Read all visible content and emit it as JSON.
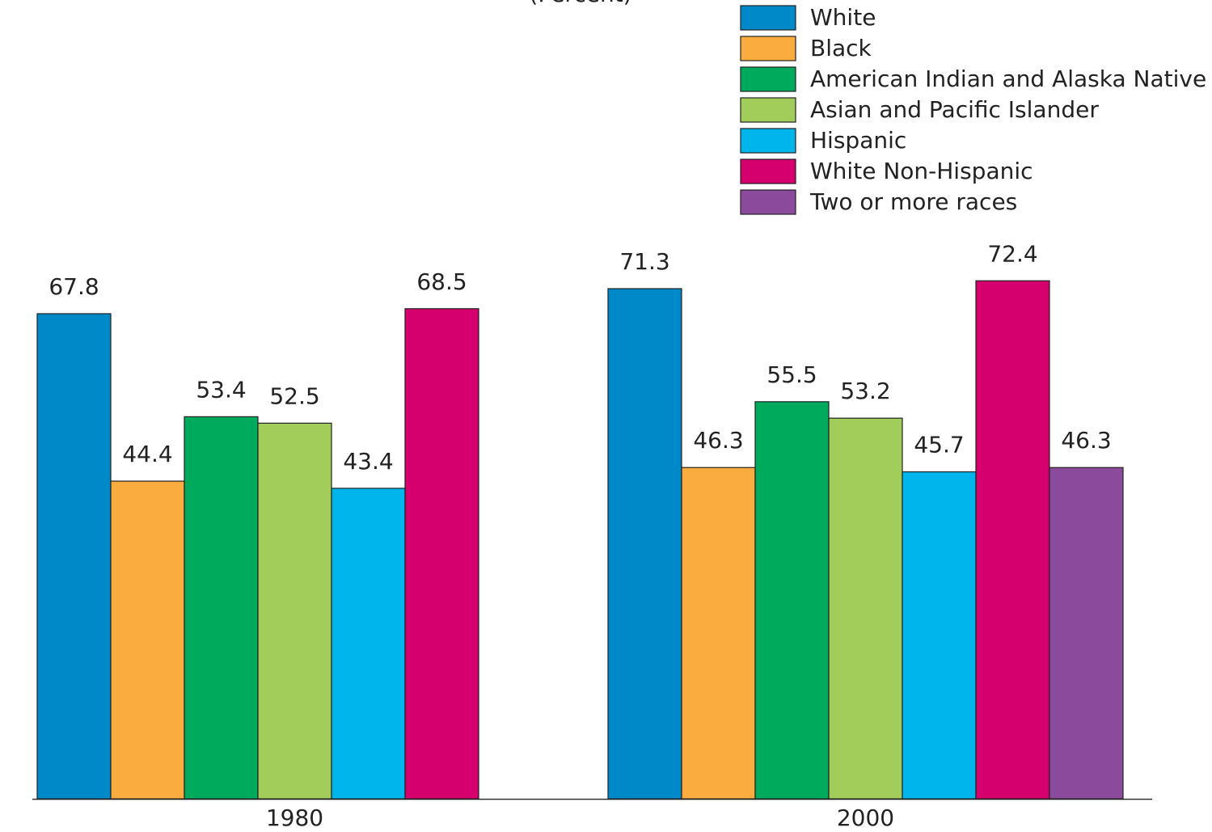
{
  "chart_data": {
    "type": "bar",
    "subtitle": "(Percent)",
    "categories": [
      "1980",
      "2000"
    ],
    "series": [
      {
        "name": "White",
        "color": "#0089c8",
        "values": [
          67.8,
          71.3
        ]
      },
      {
        "name": "Black",
        "color": "#fbac3f",
        "values": [
          44.4,
          46.3
        ]
      },
      {
        "name": "American Indian and Alaska Native",
        "color": "#00aa5c",
        "values": [
          53.4,
          55.5
        ]
      },
      {
        "name": "Asian and Pacific Islander",
        "color": "#a3cd5b",
        "values": [
          52.5,
          53.2
        ]
      },
      {
        "name": "Hispanic",
        "color": "#00b4ec",
        "values": [
          43.4,
          45.7
        ]
      },
      {
        "name": "White Non-Hispanic",
        "color": "#d5006d",
        "values": [
          68.5,
          72.4
        ]
      },
      {
        "name": "Two or more races",
        "color": "#8b4a9c",
        "values": [
          null,
          46.3
        ]
      }
    ],
    "ylim": [
      0,
      80
    ],
    "legend": "top-right"
  }
}
